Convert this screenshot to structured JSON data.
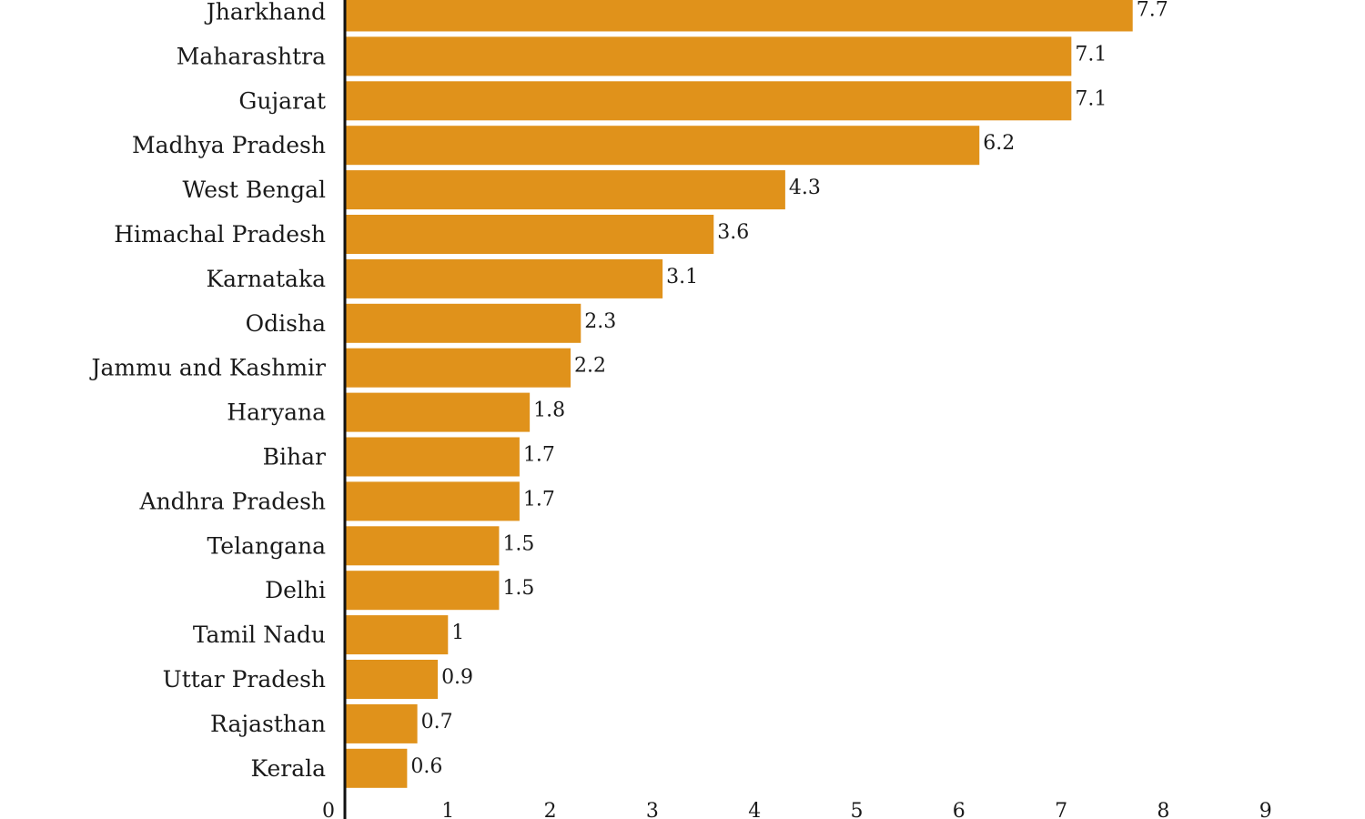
{
  "chart_data": {
    "type": "bar",
    "orientation": "horizontal",
    "categories": [
      "Jharkhand",
      "Maharashtra",
      "Gujarat",
      "Madhya Pradesh",
      "West Bengal",
      "Himachal Pradesh",
      "Karnataka",
      "Odisha",
      "Jammu and Kashmir",
      "Haryana",
      "Bihar",
      "Andhra Pradesh",
      "Telangana",
      "Delhi",
      "Tamil Nadu",
      "Uttar Pradesh",
      "Rajasthan",
      "Kerala"
    ],
    "values": [
      7.7,
      7.1,
      7.1,
      6.2,
      4.3,
      3.6,
      3.1,
      2.3,
      2.2,
      1.8,
      1.7,
      1.7,
      1.5,
      1.5,
      1,
      0.9,
      0.7,
      0.6
    ],
    "value_labels": [
      "7.7",
      "7.1",
      "7.1",
      "6.2",
      "4.3",
      "3.6",
      "3.1",
      "2.3",
      "2.2",
      "1.8",
      "1.7",
      "1.7",
      "1.5",
      "1.5",
      "1",
      "0.9",
      "0.7",
      "0.6"
    ],
    "xticks": [
      "0",
      "1",
      "2",
      "3",
      "4",
      "5",
      "6",
      "7",
      "8",
      "9"
    ],
    "xlim": [
      0,
      9
    ],
    "title": "",
    "xlabel": "",
    "ylabel": "",
    "grid": false,
    "legend": "none",
    "bar_color": "#e0921b",
    "axis_color": "#111111"
  }
}
